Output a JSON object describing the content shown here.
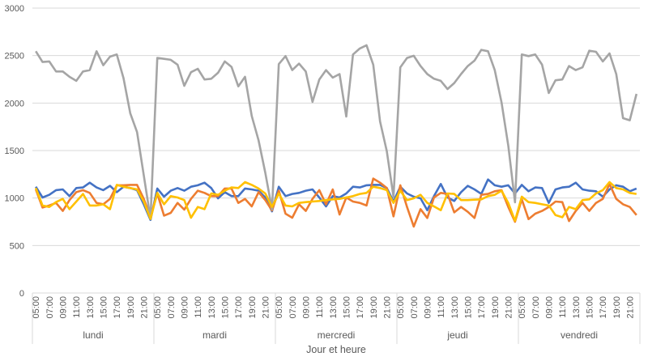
{
  "chart_data": {
    "type": "line",
    "title": "",
    "xlabel": "Jour et heure",
    "ylabel": "",
    "ylim": [
      0,
      3000
    ],
    "y_ticks": [
      "0",
      "500",
      "1000",
      "1500",
      "2000",
      "2500",
      "3000"
    ],
    "grid": true,
    "legend": "none",
    "days": [
      "lundi",
      "mardi",
      "mercredi",
      "jeudi",
      "vendredi"
    ],
    "hours": [
      "05:00",
      "06:00",
      "07:00",
      "08:00",
      "09:00",
      "10:00",
      "11:00",
      "12:00",
      "13:00",
      "14:00",
      "15:00",
      "16:00",
      "17:00",
      "18:00",
      "19:00",
      "20:00",
      "21:00",
      "22:00"
    ],
    "hour_tick_labels": [
      "05:00",
      "07:00",
      "09:00",
      "11:00",
      "13:00",
      "15:00",
      "17:00",
      "19:00",
      "21:00"
    ],
    "series": [
      {
        "color": "#4472C4",
        "values": [
          1119,
          1006,
          1034,
          1083,
          1091,
          1020,
          1105,
          1111,
          1162,
          1111,
          1083,
          1128,
          1062,
          1119,
          1105,
          1083,
          934,
          770,
          1100,
          1014,
          1077,
          1105,
          1077,
          1119,
          1134,
          1162,
          1105,
          997,
          1062,
          1020,
          1020,
          1100,
          1091,
          1077,
          1006,
          860,
          1119,
          1020,
          1043,
          1054,
          1077,
          1091,
          1006,
          912,
          1020,
          1006,
          1048,
          1119,
          1111,
          1134,
          1139,
          1139,
          1105,
          963,
          1119,
          1048,
          1014,
          997,
          872,
          1020,
          1148,
          1006,
          969,
          1062,
          1128,
          1091,
          1043,
          1196,
          1134,
          1119,
          1134,
          1048,
          1139,
          1071,
          1111,
          1105,
          949,
          1091,
          1111,
          1119,
          1162,
          1091,
          1077,
          1071,
          1014,
          1091,
          1134,
          1119,
          1071,
          1100
        ]
      },
      {
        "color": "#ED7D31",
        "values": [
          1091,
          900,
          921,
          949,
          864,
          978,
          1062,
          1083,
          1054,
          949,
          934,
          991,
          1134,
          1134,
          1139,
          1139,
          991,
          800,
          1048,
          815,
          844,
          949,
          878,
          991,
          1077,
          1054,
          1020,
          1020,
          1100,
          1100,
          949,
          991,
          912,
          1062,
          978,
          870,
          1077,
          835,
          793,
          934,
          864,
          991,
          1083,
          934,
          1091,
          827,
          1006,
          963,
          949,
          921,
          1205,
          1162,
          1105,
          807,
          1134,
          906,
          700,
          883,
          790,
          1006,
          1054,
          1043,
          849,
          906,
          855,
          790,
          1034,
          1043,
          1071,
          1083,
          906,
          750,
          986,
          778,
          835,
          864,
          906,
          963,
          957,
          758,
          864,
          949,
          864,
          949,
          991,
          1148,
          991,
          934,
          906,
          821
        ]
      },
      {
        "color": "#A5A5A5",
        "values": [
          2546,
          2432,
          2438,
          2333,
          2333,
          2276,
          2234,
          2333,
          2347,
          2546,
          2398,
          2489,
          2512,
          2262,
          1893,
          1694,
          1239,
          784,
          2475,
          2466,
          2455,
          2404,
          2182,
          2325,
          2361,
          2248,
          2256,
          2319,
          2438,
          2381,
          2176,
          2276,
          1864,
          1608,
          1267,
          880,
          2410,
          2495,
          2347,
          2415,
          2333,
          2012,
          2248,
          2347,
          2268,
          2305,
          1858,
          2512,
          2575,
          2609,
          2404,
          1807,
          1495,
          1012,
          2376,
          2475,
          2498,
          2390,
          2305,
          2256,
          2234,
          2148,
          2211,
          2305,
          2390,
          2447,
          2560,
          2546,
          2347,
          2006,
          1552,
          955,
          2512,
          2495,
          2512,
          2404,
          2106,
          2240,
          2248,
          2390,
          2347,
          2376,
          2552,
          2540,
          2438,
          2523,
          2305,
          1841,
          1819,
          2097
        ]
      },
      {
        "color": "#FFC000",
        "values": [
          1105,
          921,
          906,
          957,
          991,
          883,
          963,
          1043,
          921,
          921,
          934,
          883,
          1139,
          1119,
          1105,
          1091,
          963,
          780,
          1054,
          934,
          1020,
          1006,
          978,
          793,
          906,
          883,
          1048,
          1034,
          1077,
          1111,
          1105,
          1168,
          1139,
          1100,
          1048,
          906,
          1048,
          921,
          912,
          949,
          957,
          963,
          969,
          978,
          986,
          991,
          1006,
          1020,
          1043,
          1054,
          1119,
          1105,
          1083,
          949,
          1077,
          978,
          997,
          1034,
          949,
          912,
          872,
          1048,
          1043,
          978,
          978,
          983,
          986,
          1020,
          1034,
          1077,
          949,
          760,
          1014,
          957,
          949,
          934,
          921,
          821,
          798,
          906,
          883,
          978,
          986,
          1048,
          1083,
          1168,
          1105,
          1091,
          1054,
          1043
        ]
      }
    ]
  }
}
